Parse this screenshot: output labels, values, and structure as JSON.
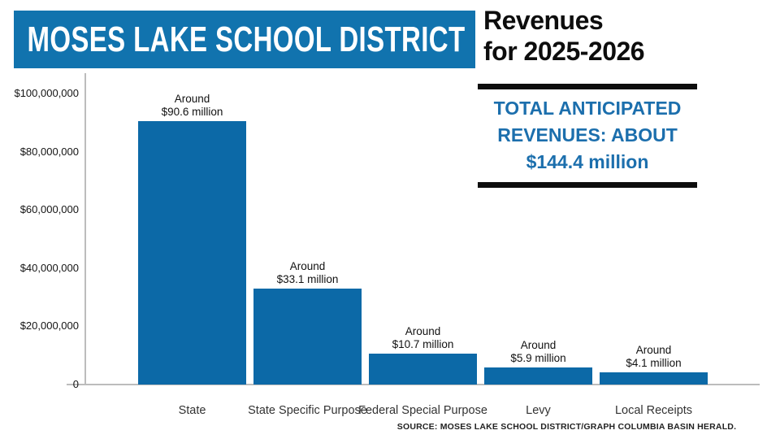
{
  "header": {
    "district_title": "MOSES LAKE SCHOOL DISTRICT",
    "subtitle_line1": "Revenues",
    "subtitle_line2": "for 2025-2026"
  },
  "info_box": {
    "line1": "TOTAL ANTICIPATED",
    "line2": "REVENUES: ABOUT",
    "line3": "$144.4 million"
  },
  "footer": {
    "source": "SOURCE: MOSES LAKE SCHOOL DISTRICT/GRAPH COLUMBIA BASIN HERALD."
  },
  "colors": {
    "banner_blue": "#1173ae",
    "bar_fill": "#0c69a7",
    "info_text_blue": "#1c6fad",
    "divider_black": "#0d0d0d",
    "axis_gray": "#bcbcbc"
  },
  "chart_data": {
    "type": "bar",
    "title": "Moses Lake School District Revenues for 2025-2026",
    "xlabel": "",
    "ylabel": "",
    "grid": false,
    "legend": false,
    "ylim": [
      0,
      100000000
    ],
    "categories": [
      "State",
      "State Specific Purpose",
      "Federal Special Purpose",
      "Levy",
      "Local Receipts"
    ],
    "values": [
      90600000,
      33100000,
      10700000,
      5900000,
      4100000
    ],
    "bar_annotations": [
      [
        "Around",
        "$90.6 million"
      ],
      [
        "Around",
        "$33.1 million"
      ],
      [
        "Around",
        "$10.7 million"
      ],
      [
        "Around",
        "$5.9 million"
      ],
      [
        "Around",
        "$4.1 million"
      ]
    ],
    "y_ticks": [
      {
        "value": 0,
        "label": "0"
      },
      {
        "value": 20000000,
        "label": "$20,000,000"
      },
      {
        "value": 40000000,
        "label": "$40,000,000"
      },
      {
        "value": 60000000,
        "label": "$60,000,000"
      },
      {
        "value": 80000000,
        "label": "$80,000,000"
      },
      {
        "value": 100000000,
        "label": "$100,000,000"
      }
    ]
  }
}
